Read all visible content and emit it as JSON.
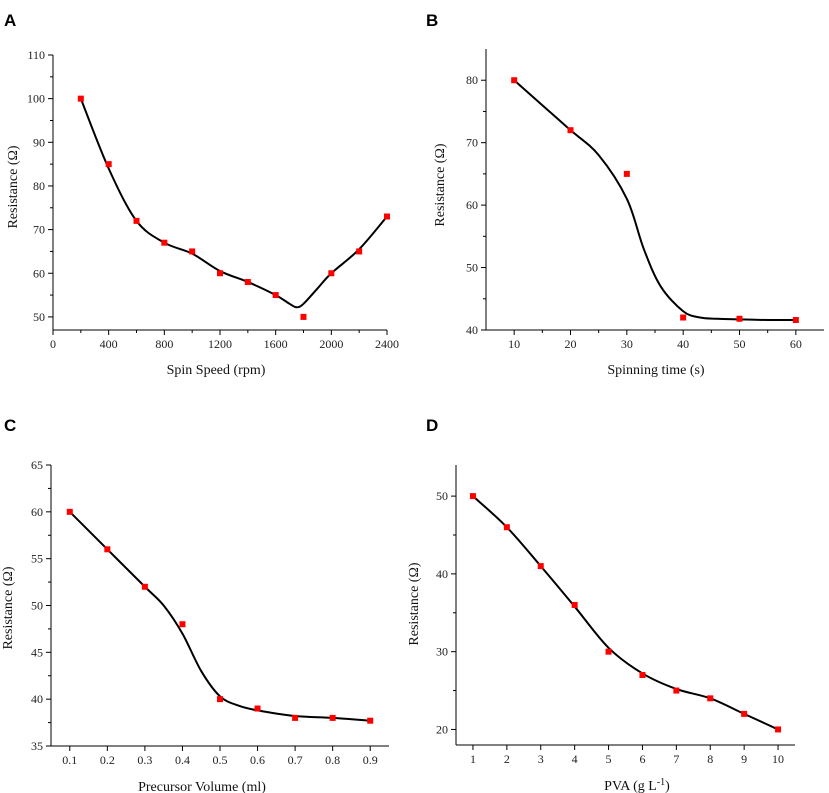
{
  "chart_data": [
    {
      "panel": "A",
      "type": "scatter",
      "xlabel": "Spin Speed (rpm)",
      "ylabel": "Resistance (Ω)",
      "xlim": [
        0,
        2400
      ],
      "ylim": [
        47,
        110
      ],
      "xticks": [
        0,
        400,
        800,
        1200,
        1600,
        2000,
        2400
      ],
      "xminor": [
        200,
        600,
        1000,
        1400,
        1800,
        2200
      ],
      "yticks": [
        50,
        60,
        70,
        80,
        90,
        100,
        110
      ],
      "x": [
        200,
        400,
        600,
        800,
        1000,
        1200,
        1400,
        1600,
        1800,
        2000,
        2200,
        2400
      ],
      "y": [
        100,
        85,
        72,
        67,
        65,
        60,
        58,
        55,
        50,
        60,
        65,
        73
      ],
      "fit_x": [
        200,
        400,
        600,
        800,
        1000,
        1200,
        1400,
        1600,
        1700,
        1750,
        1800,
        1900,
        2000,
        2200,
        2400
      ],
      "fit_y": [
        100,
        84,
        72,
        67,
        64.5,
        60.5,
        58,
        55,
        53,
        52.2,
        53,
        56.5,
        60,
        65.5,
        73
      ]
    },
    {
      "panel": "B",
      "type": "scatter",
      "xlabel": "Spinning time (s)",
      "ylabel": "Resistance (Ω)",
      "xlim": [
        5,
        65
      ],
      "ylim": [
        40,
        85
      ],
      "xticks": [
        10,
        20,
        30,
        40,
        50,
        60
      ],
      "xminor": [
        15,
        25,
        35,
        45,
        55
      ],
      "yticks": [
        40,
        50,
        60,
        70,
        80
      ],
      "x": [
        10,
        20,
        30,
        40,
        50,
        60
      ],
      "y": [
        80,
        72,
        65,
        42,
        41.8,
        41.6
      ],
      "fit_x": [
        10,
        15,
        20,
        25,
        30,
        33,
        36,
        40,
        43,
        46,
        50,
        55,
        60
      ],
      "fit_y": [
        80,
        76,
        72,
        68,
        61,
        53,
        47,
        43,
        42,
        41.8,
        41.7,
        41.6,
        41.6
      ]
    },
    {
      "panel": "C",
      "type": "scatter",
      "xlabel": "Precursor Volume (ml)",
      "ylabel": "Resistance (Ω)",
      "xlim": [
        0.05,
        0.95
      ],
      "ylim": [
        35,
        65
      ],
      "xticks": [
        0.1,
        0.2,
        0.3,
        0.4,
        0.5,
        0.6,
        0.7,
        0.8,
        0.9
      ],
      "xtick_labels": [
        "0.1",
        "0.2",
        "0.3",
        "0.4",
        "0.5",
        "0.6",
        "0.7",
        "0.8",
        "0.9"
      ],
      "xminor": [],
      "yticks": [
        35,
        40,
        45,
        50,
        55,
        60,
        65
      ],
      "x": [
        0.1,
        0.2,
        0.3,
        0.4,
        0.5,
        0.6,
        0.7,
        0.8,
        0.9
      ],
      "y": [
        60,
        56,
        52,
        48,
        40,
        39,
        38,
        38,
        37.7
      ],
      "fit_x": [
        0.1,
        0.2,
        0.3,
        0.35,
        0.4,
        0.45,
        0.5,
        0.55,
        0.6,
        0.7,
        0.8,
        0.9
      ],
      "fit_y": [
        60,
        56,
        52,
        50,
        47,
        43,
        40.3,
        39.3,
        38.8,
        38.2,
        38,
        37.7
      ]
    },
    {
      "panel": "D",
      "type": "scatter",
      "xlabel": "PVA (g L",
      "xlabel_sup": "-1",
      "xlabel_end": ")",
      "ylabel": "Resistance (Ω)",
      "xlim": [
        0.5,
        10.5
      ],
      "ylim": [
        18,
        54
      ],
      "xticks": [
        1,
        2,
        3,
        4,
        5,
        6,
        7,
        8,
        9,
        10
      ],
      "xminor": [],
      "yticks": [
        20,
        30,
        40,
        50
      ],
      "x": [
        1,
        2,
        3,
        4,
        5,
        6,
        7,
        8,
        9,
        10
      ],
      "y": [
        50,
        46,
        41,
        36,
        30,
        27,
        25,
        24,
        22,
        20
      ],
      "fit_x": [
        1,
        2,
        3,
        4,
        5,
        6,
        7,
        8,
        9,
        10
      ],
      "fit_y": [
        50,
        46,
        41,
        35.8,
        30.5,
        27.2,
        25.2,
        24,
        22,
        20
      ]
    }
  ],
  "colors": {
    "marker": "#ff0000",
    "curve": "#000000",
    "axis": "#000000"
  }
}
